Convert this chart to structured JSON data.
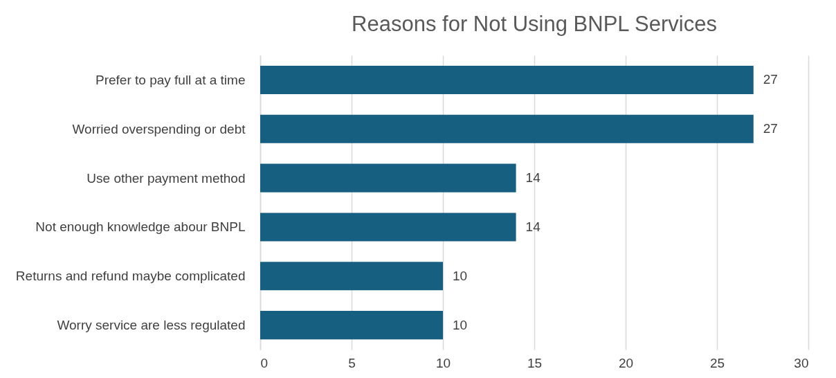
{
  "chart_data": {
    "type": "bar",
    "orientation": "horizontal",
    "title": "Reasons for Not Using BNPL Services",
    "categories": [
      "Prefer to pay full at a time",
      "Worried overspending or debt",
      "Use other payment method",
      "Not enough knowledge abour BNPL",
      "Returns and refund maybe complicated",
      "Worry service are less regulated"
    ],
    "values": [
      27,
      27,
      14,
      14,
      10,
      10
    ],
    "color": "#175f80",
    "xlim": [
      0,
      30
    ],
    "xticks": [
      0,
      5,
      10,
      15,
      20,
      25,
      30
    ],
    "grid": "x",
    "data_labels": true
  }
}
